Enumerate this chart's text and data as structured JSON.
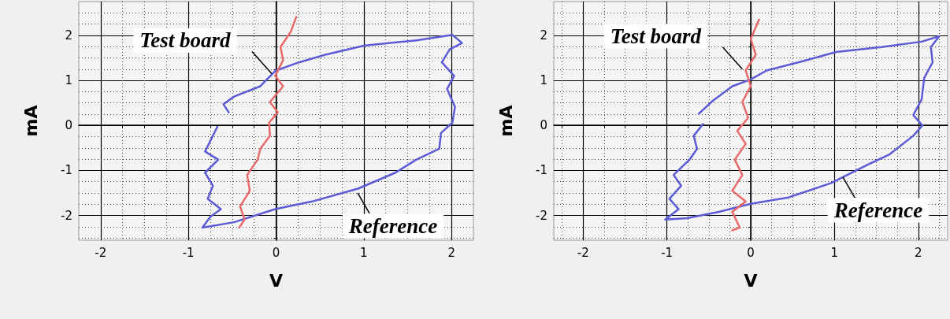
{
  "chart_data": [
    {
      "type": "line",
      "xlabel": "V",
      "ylabel": "mA",
      "xlim": [
        -2.25,
        2.25
      ],
      "ylim": [
        -2.55,
        2.75
      ],
      "xticks": [
        -2,
        -1,
        0,
        1,
        2
      ],
      "yticks": [
        -2,
        -1,
        0,
        1,
        2
      ],
      "grid": true,
      "series": [
        {
          "color": "#5c5cd6",
          "x": [
            -0.67,
            -0.81,
            -0.66,
            -0.81,
            -0.72,
            -0.78,
            -0.63,
            -0.75,
            -0.84,
            -0.48,
            -0.01,
            0.41,
            0.94,
            1.36,
            1.6,
            1.86,
            1.88,
            2.01,
            2.04,
            1.95,
            2.03,
            1.89,
            1.98,
            2.12,
            2.01,
            1.6,
            1.0,
            0.56,
            0.26,
            -0.01,
            -0.18,
            -0.48,
            -0.6,
            -0.54
          ],
          "values": [
            -0.03,
            -0.58,
            -0.76,
            -1.05,
            -1.34,
            -1.63,
            -1.86,
            -2.03,
            -2.27,
            -2.15,
            -1.86,
            -1.69,
            -1.4,
            -1.05,
            -0.76,
            -0.52,
            -0.17,
            0.06,
            0.41,
            0.81,
            1.1,
            1.4,
            1.69,
            1.83,
            2.01,
            1.89,
            1.77,
            1.57,
            1.4,
            1.21,
            0.87,
            0.64,
            0.47,
            0.29
          ]
        },
        {
          "color": "#e86a6a",
          "x": [
            -0.42,
            -0.36,
            -0.41,
            -0.3,
            -0.33,
            -0.21,
            -0.18,
            -0.07,
            -0.08,
            0.02,
            -0.07,
            0.08,
            -0.01,
            0.08,
            0.05,
            0.17,
            0.23
          ],
          "values": [
            -2.27,
            -2.09,
            -1.8,
            -1.45,
            -1.1,
            -0.76,
            -0.52,
            -0.23,
            0.06,
            0.29,
            0.52,
            0.87,
            1.1,
            1.45,
            1.74,
            2.09,
            2.41
          ]
        }
      ],
      "annotations": [
        {
          "text": "Test board",
          "x": -0.05,
          "y": 1.15
        },
        {
          "text": "Reference",
          "x": 0.93,
          "y": -1.5
        }
      ]
    },
    {
      "type": "line",
      "xlabel": "V",
      "ylabel": "mA",
      "xlim": [
        -2.35,
        2.35
      ],
      "ylim": [
        -2.55,
        2.75
      ],
      "xticks": [
        -2,
        -1,
        0,
        1,
        2
      ],
      "yticks": [
        -2,
        -1,
        0,
        1,
        2
      ],
      "grid": true,
      "series": [
        {
          "color": "#5c5cd6",
          "x": [
            -0.57,
            -0.68,
            -0.64,
            -0.73,
            -0.92,
            -0.83,
            -0.97,
            -0.86,
            -1.02,
            -0.76,
            -0.38,
            0.0,
            0.45,
            0.96,
            1.4,
            1.66,
            1.94,
            2.05,
            1.94,
            2.04,
            2.07,
            2.17,
            2.15,
            2.25,
            2.04,
            1.56,
            1.02,
            0.61,
            0.19,
            0.0,
            -0.22,
            -0.45,
            -0.62
          ],
          "values": [
            0.03,
            -0.23,
            -0.52,
            -0.76,
            -1.1,
            -1.34,
            -1.63,
            -1.86,
            -2.09,
            -2.06,
            -1.92,
            -1.74,
            -1.6,
            -1.28,
            -0.87,
            -0.64,
            -0.23,
            0.0,
            0.23,
            0.58,
            1.05,
            1.4,
            1.74,
            1.98,
            1.86,
            1.74,
            1.63,
            1.42,
            1.22,
            1.02,
            0.87,
            0.55,
            0.26
          ]
        },
        {
          "color": "#e86a6a",
          "x": [
            -0.22,
            -0.13,
            -0.22,
            -0.06,
            -0.22,
            -0.1,
            -0.19,
            -0.06,
            -0.16,
            -0.03,
            -0.1,
            0.0,
            -0.06,
            0.06,
            0.0,
            0.1
          ],
          "values": [
            -2.33,
            -2.27,
            -1.92,
            -1.69,
            -1.45,
            -1.1,
            -0.76,
            -0.41,
            -0.12,
            0.17,
            0.52,
            0.87,
            1.22,
            1.57,
            1.92,
            2.35
          ]
        }
      ],
      "annotations": [
        {
          "text": "Test board",
          "x": -0.1,
          "y": 1.25
        },
        {
          "text": "Reference",
          "x": 1.1,
          "y": -1.15
        }
      ]
    }
  ]
}
